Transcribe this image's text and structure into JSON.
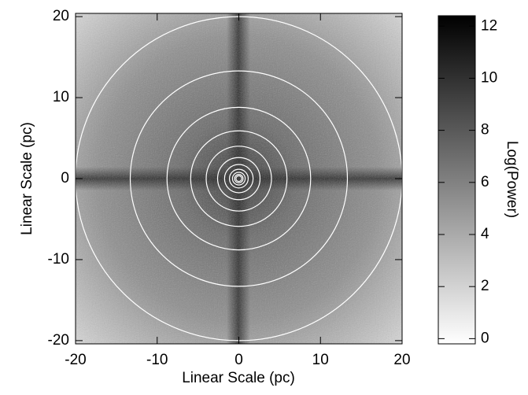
{
  "chart_data": {
    "type": "image",
    "xlabel": "Linear Scale (pc)",
    "ylabel": "Linear Scale (pc)",
    "xlim": [
      -20,
      20
    ],
    "ylim": [
      -20.4,
      20.4
    ],
    "xticks": [
      -20,
      -10,
      0,
      10,
      20
    ],
    "yticks": [
      -20,
      -10,
      0,
      10,
      20
    ],
    "circle_center": [
      0,
      0
    ],
    "circle_radii": [
      20,
      13.3,
      8.8,
      5.9,
      4,
      2.6,
      1.75,
      1.15,
      0.78,
      0.52,
      0.35
    ],
    "circle_color": "#ffffff",
    "colorbar": {
      "label": "Log(Power)",
      "clim": [
        -0.2,
        12.4
      ],
      "ticks": [
        0,
        2,
        4,
        6,
        8,
        10,
        12
      ],
      "cmap": [
        "#ffffff",
        "#000000"
      ]
    }
  }
}
